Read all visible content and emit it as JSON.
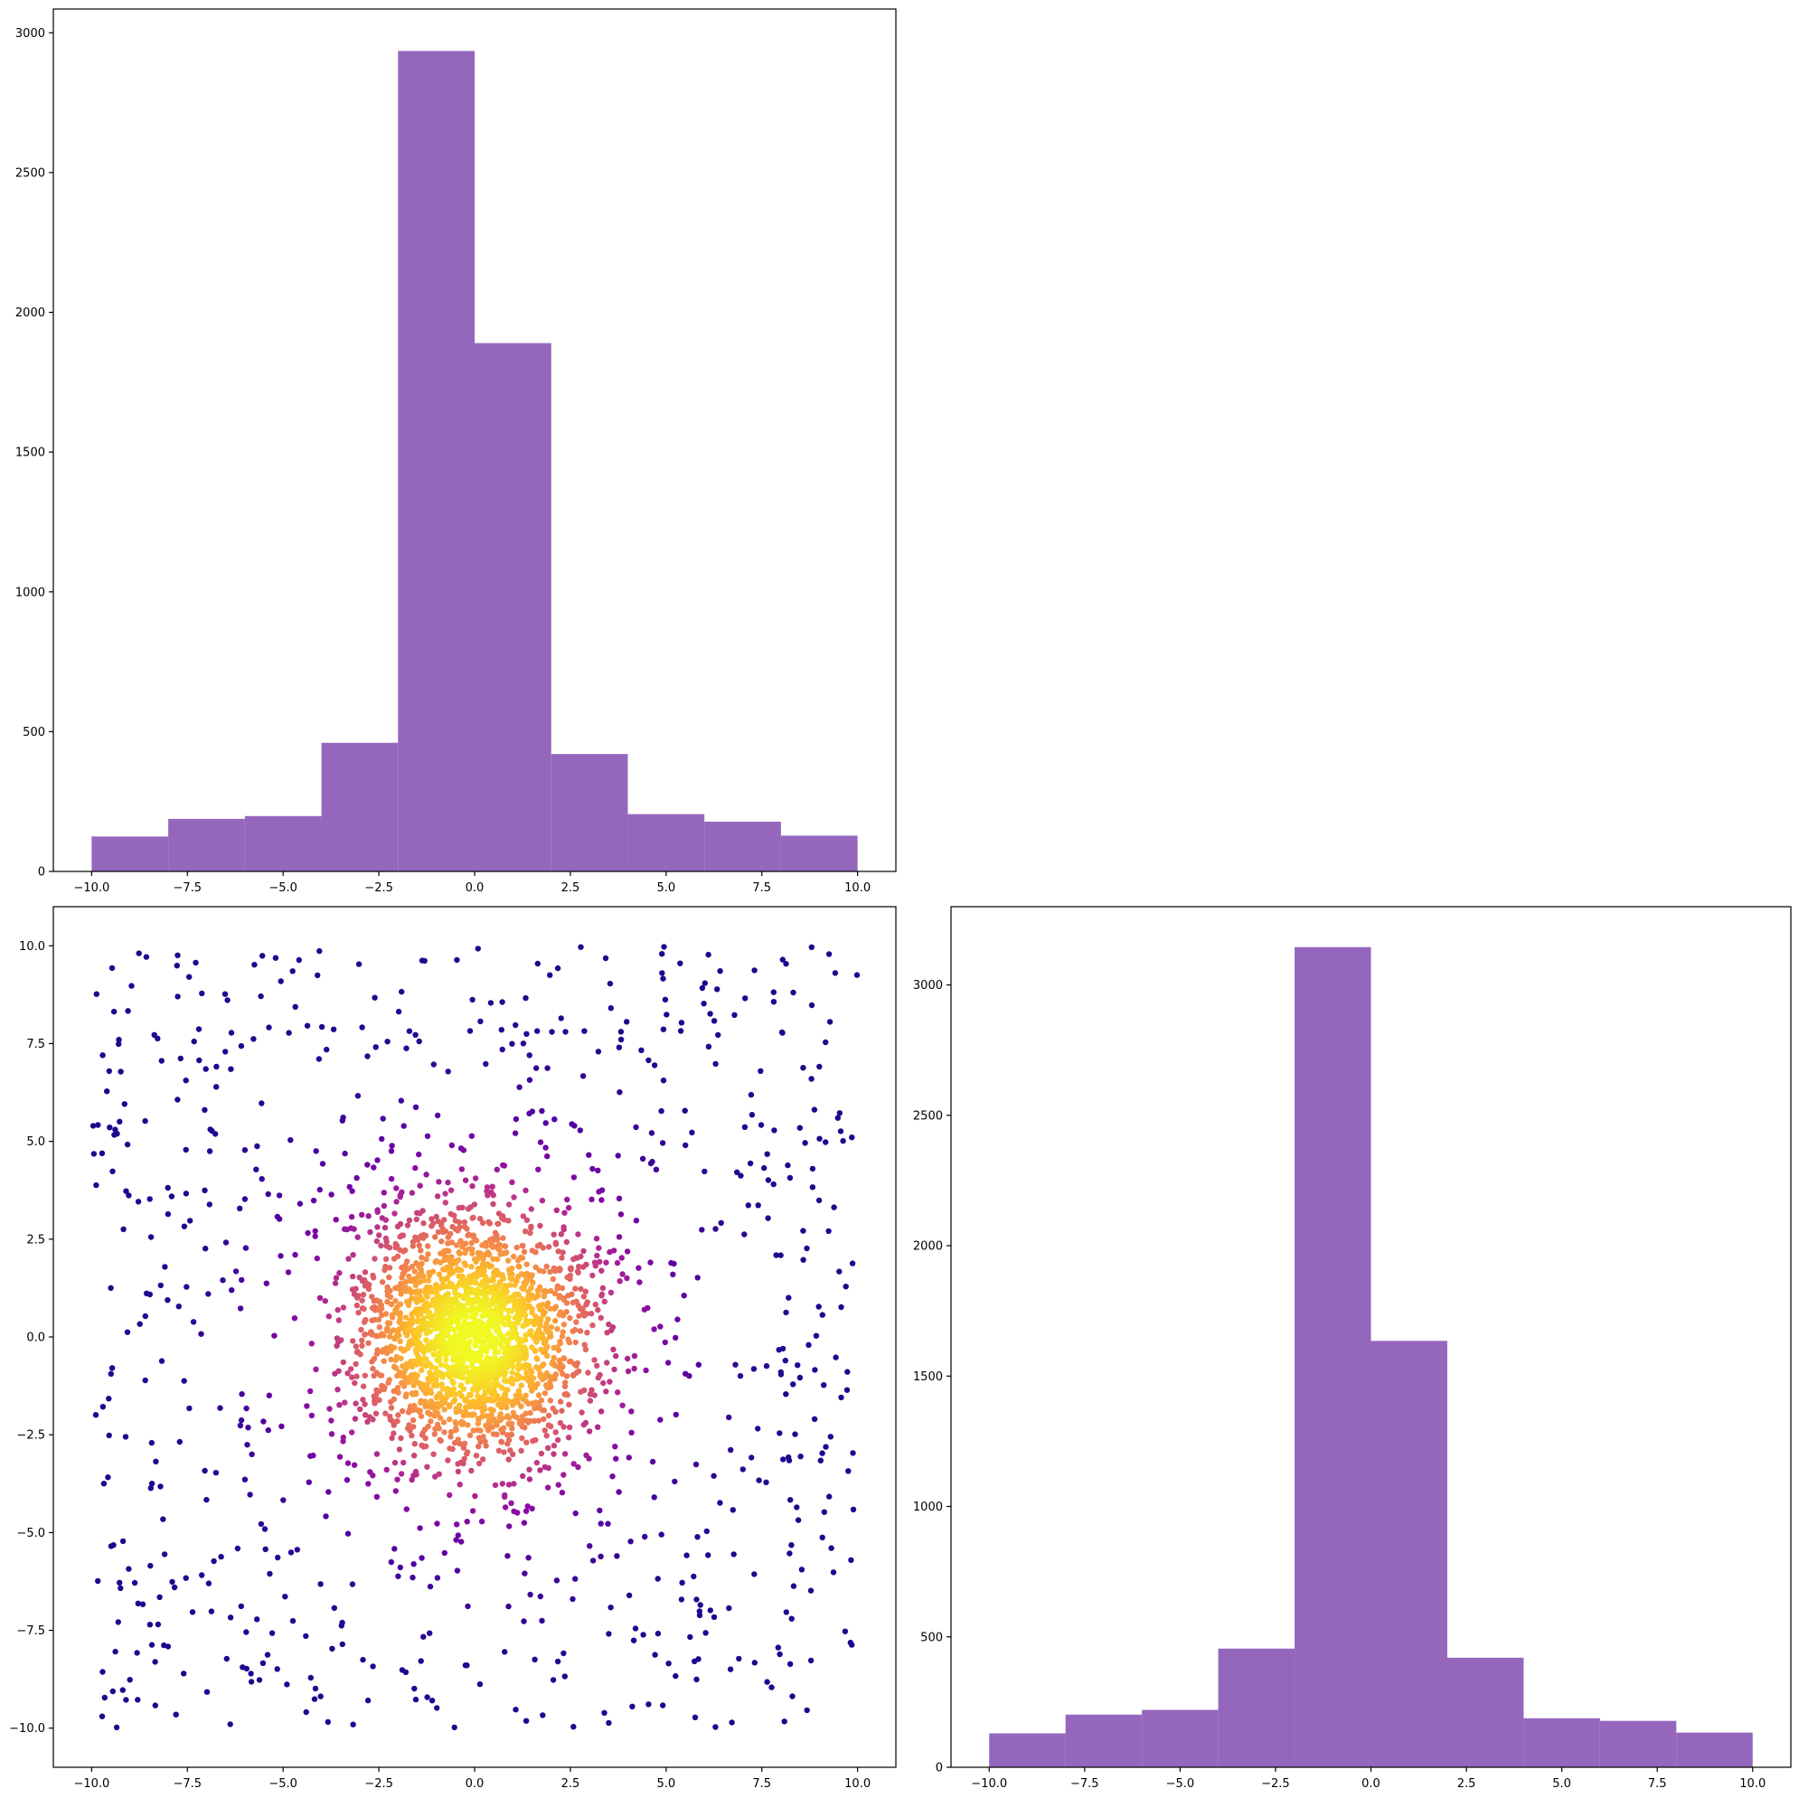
{
  "chart_data": [
    {
      "type": "bar",
      "panel": "top-left",
      "bin_edges": [
        -10,
        -8,
        -6,
        -4,
        -2,
        0,
        2,
        4,
        6,
        8,
        10
      ],
      "values": [
        125,
        188,
        198,
        460,
        2935,
        1890,
        420,
        205,
        178,
        128
      ],
      "xlim": [
        -11,
        11
      ],
      "ylim": [
        0,
        3085
      ],
      "xticks": [
        -10.0,
        -7.5,
        -5.0,
        -2.5,
        0.0,
        2.5,
        5.0,
        7.5,
        10.0
      ],
      "xtick_labels": [
        "−10.0",
        "−7.5",
        "−5.0",
        "−2.5",
        "0.0",
        "2.5",
        "5.0",
        "7.5",
        "10.0"
      ],
      "yticks": [
        0,
        500,
        1000,
        1500,
        2000,
        2500,
        3000
      ],
      "ytick_labels": [
        "0",
        "500",
        "1000",
        "1500",
        "2000",
        "2500",
        "3000"
      ],
      "color": "#9467bd"
    },
    {
      "type": "scatter",
      "panel": "bottom-left",
      "n_points": 3000,
      "distribution": "mixture of a central 2D gaussian (sigma ~1.5) and a uniform square over [-10, 10]",
      "color_by": "local density",
      "colormap": "plasma",
      "xlim": [
        -11,
        11
      ],
      "ylim": [
        -11,
        11
      ],
      "xticks": [
        -10.0,
        -7.5,
        -5.0,
        -2.5,
        0.0,
        2.5,
        5.0,
        7.5,
        10.0
      ],
      "xtick_labels": [
        "−10.0",
        "−7.5",
        "−5.0",
        "−2.5",
        "0.0",
        "2.5",
        "5.0",
        "7.5",
        "10.0"
      ],
      "yticks": [
        -10.0,
        -7.5,
        -5.0,
        -2.5,
        0.0,
        2.5,
        5.0,
        7.5,
        10.0
      ],
      "ytick_labels": [
        "−10.0",
        "−7.5",
        "−5.0",
        "−2.5",
        "0.0",
        "2.5",
        "5.0",
        "7.5",
        "10.0"
      ]
    },
    {
      "type": "bar",
      "panel": "bottom-right",
      "bin_edges": [
        -10,
        -8,
        -6,
        -4,
        -2,
        0,
        2,
        4,
        6,
        8,
        10
      ],
      "values": [
        130,
        202,
        220,
        455,
        3145,
        1635,
        420,
        188,
        178,
        133
      ],
      "xlim": [
        -11,
        11
      ],
      "ylim": [
        0,
        3300
      ],
      "xticks": [
        -10.0,
        -7.5,
        -5.0,
        -2.5,
        0.0,
        2.5,
        5.0,
        7.5,
        10.0
      ],
      "xtick_labels": [
        "−10.0",
        "−7.5",
        "−5.0",
        "−2.5",
        "0.0",
        "2.5",
        "5.0",
        "7.5",
        "10.0"
      ],
      "yticks": [
        0,
        500,
        1000,
        1500,
        2000,
        2500,
        3000
      ],
      "ytick_labels": [
        "0",
        "500",
        "1000",
        "1500",
        "2000",
        "2500",
        "3000"
      ],
      "color": "#9467bd"
    }
  ]
}
